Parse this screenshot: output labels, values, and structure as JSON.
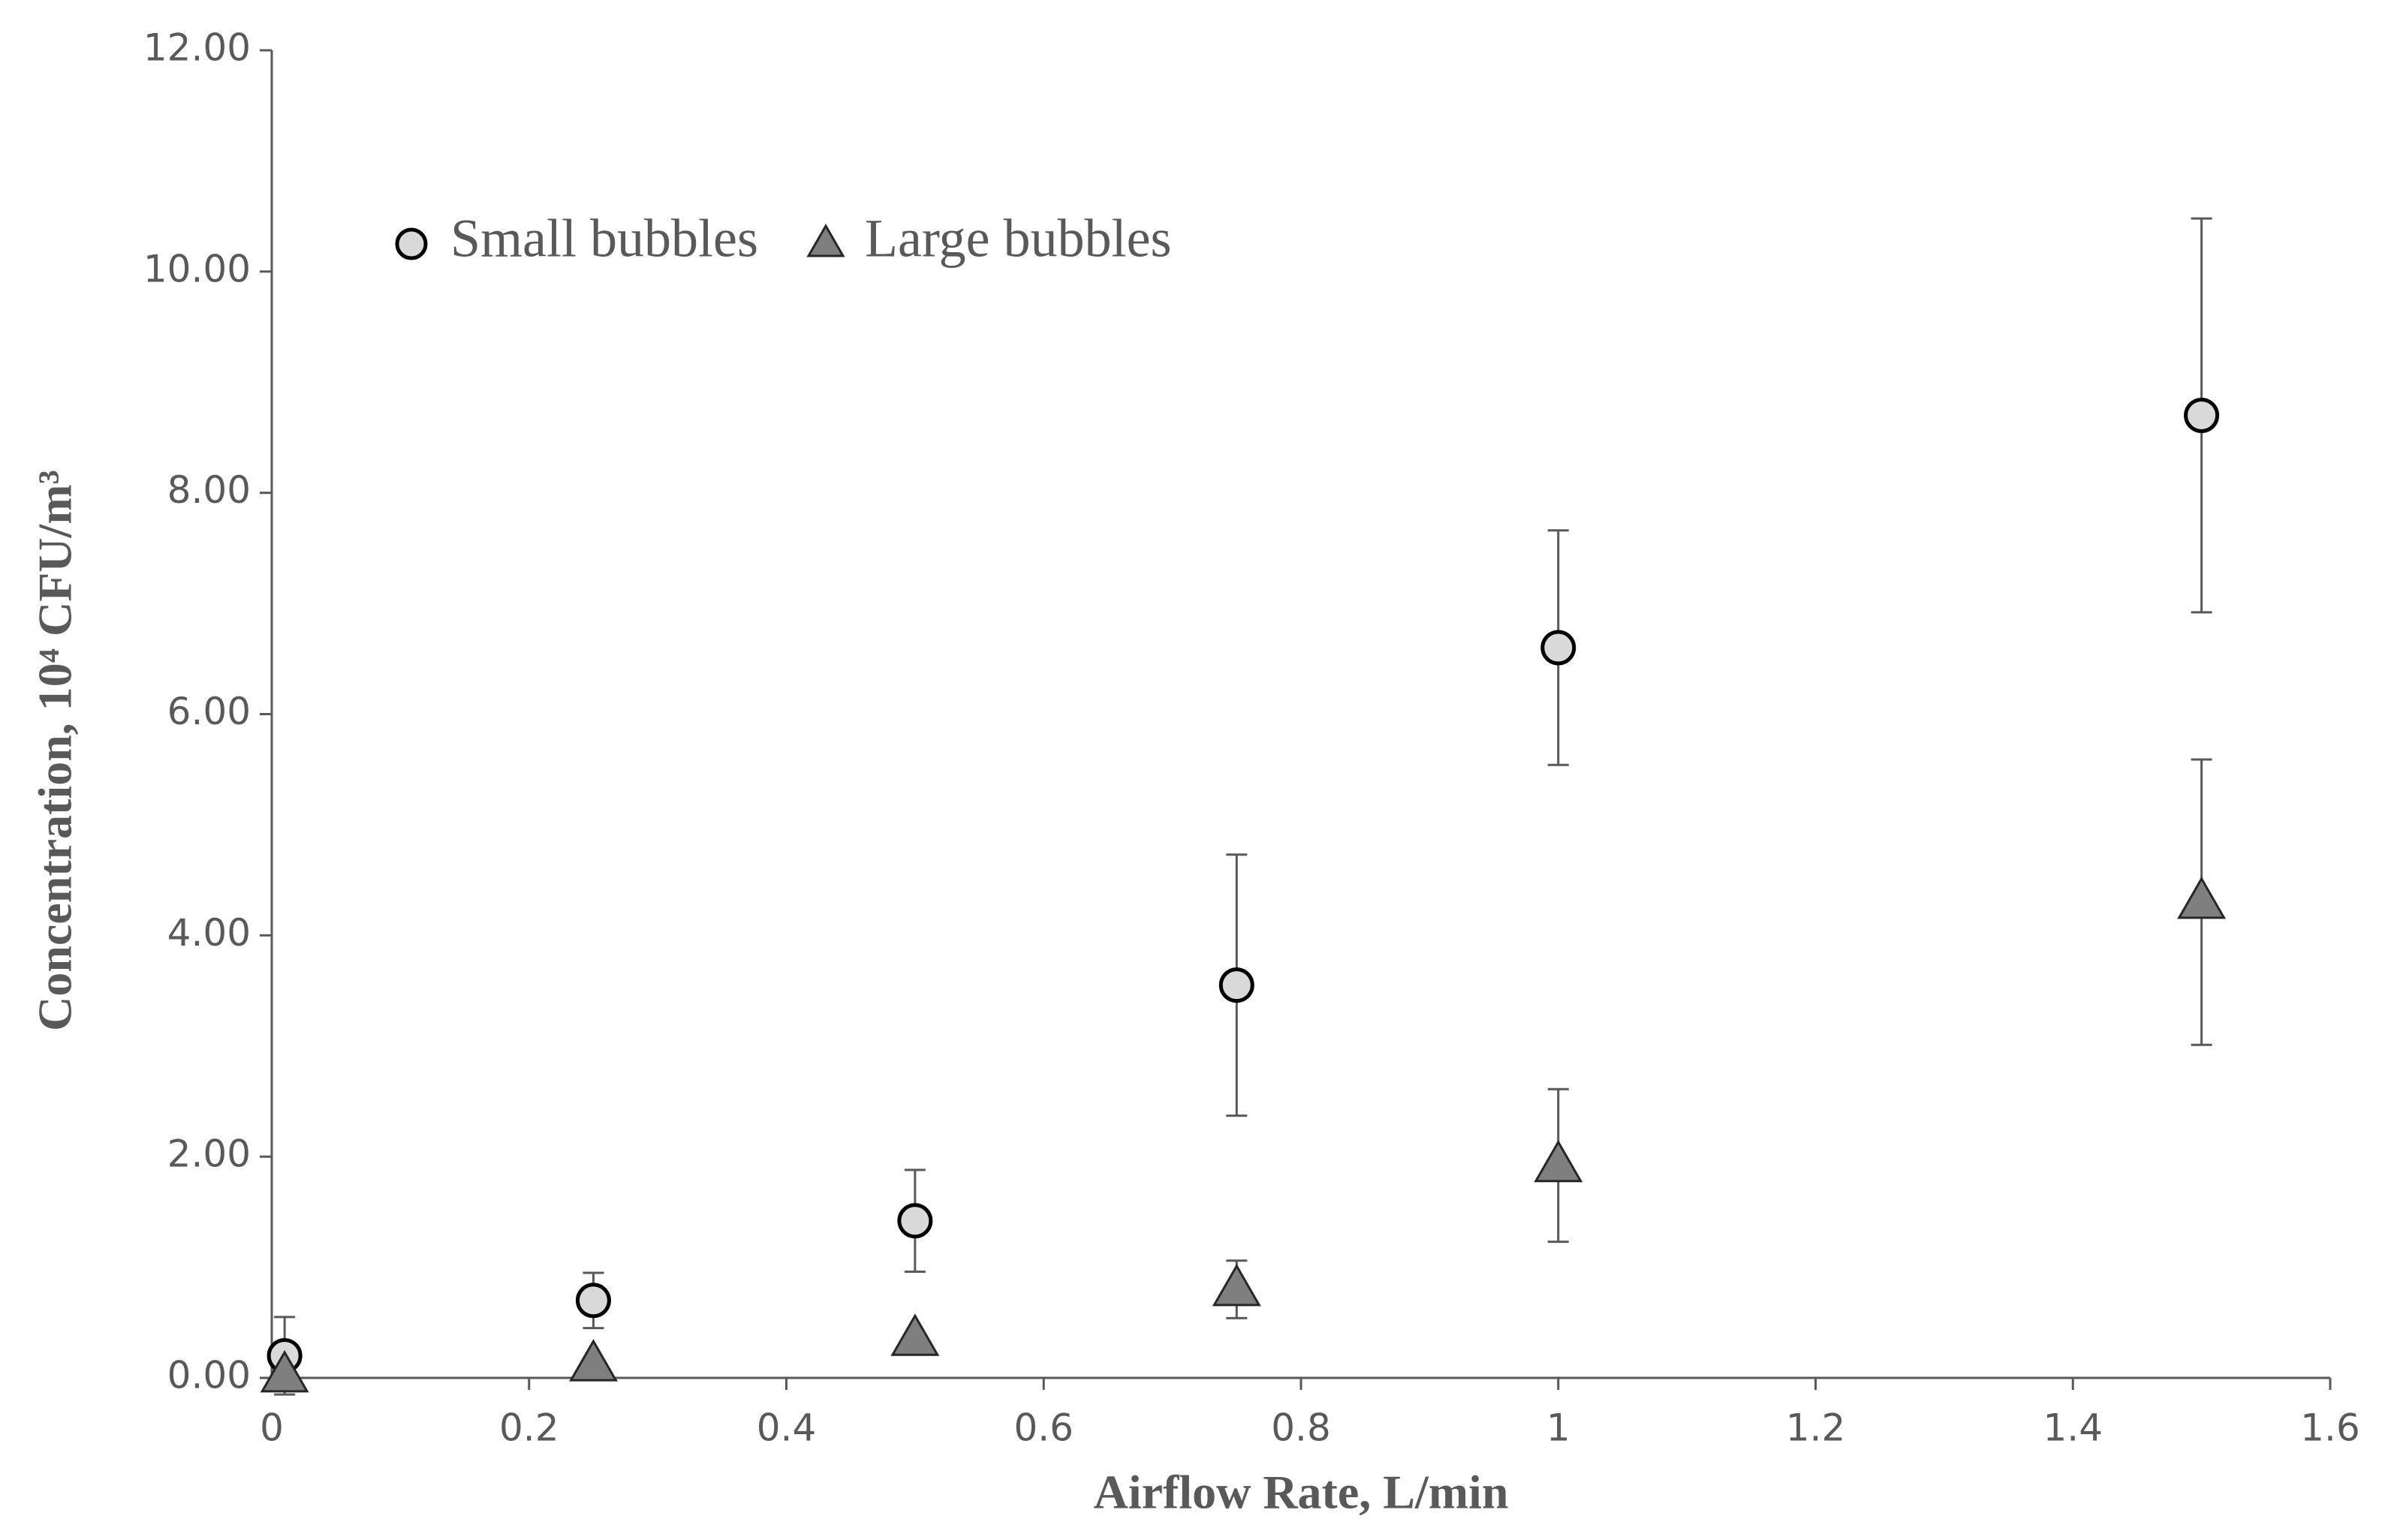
{
  "chart_data": {
    "type": "scatter",
    "x_label": "Airflow Rate, L/min",
    "y_label": "Concentration, 10⁴ CFU/m³",
    "x": [
      0.01,
      0.25,
      0.5,
      0.75,
      1,
      1.5
    ],
    "series": [
      {
        "name": "Small bubbles",
        "marker": "circle",
        "color": "#d9d9d9",
        "values": [
          0.2,
          0.7,
          1.42,
          3.55,
          6.6,
          8.7
        ],
        "errors": [
          0.35,
          0.25,
          0.46,
          1.18,
          1.06,
          1.78
        ]
      },
      {
        "name": "Large bubbles",
        "marker": "triangle",
        "color": "#7f7f7f",
        "values": [
          0.02,
          0.12,
          0.35,
          0.8,
          1.92,
          4.3
        ],
        "errors": [
          0.02,
          0.04,
          0.05,
          0.26,
          0.69,
          1.29
        ]
      }
    ],
    "xlim": [
      0,
      1.6
    ],
    "xticks": [
      0,
      0.2,
      0.4,
      0.6,
      0.8,
      1,
      1.2,
      1.4,
      1.6
    ],
    "ylim": [
      0,
      12
    ],
    "yticks": [
      {
        "value": 0,
        "label": "0.00"
      },
      {
        "value": 2,
        "label": "2.00"
      },
      {
        "value": 4,
        "label": "4.00"
      },
      {
        "value": 6,
        "label": "6.00"
      },
      {
        "value": 8,
        "label": "8.00"
      },
      {
        "value": 10,
        "label": "10.00"
      },
      {
        "value": 12,
        "label": "12.00"
      }
    ],
    "grid": false,
    "legend": "top-left"
  }
}
